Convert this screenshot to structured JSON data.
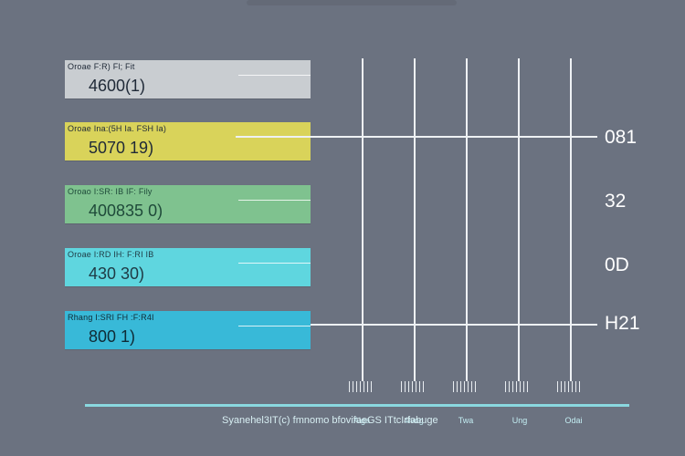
{
  "rows": [
    {
      "label": "Oroae F:R) Fl; Fit",
      "value": "4600(1)",
      "color": "#c9cdd1",
      "text_color": "#1f2937"
    },
    {
      "label": "Oroae Ina:(5H Ia. FSH Ia)",
      "value": "5070 19)",
      "color": "#d9d35a",
      "text_color": "#1f2937"
    },
    {
      "label": "Oroao I:SR: IB IF: Fily",
      "value": "400835 0)",
      "color": "#7fc28f",
      "text_color": "#1f4a3a"
    },
    {
      "label": "Oroae I:RD IH: F:RI IB",
      "value": "430 30)",
      "color": "#5fd6df",
      "text_color": "#1f3a44"
    },
    {
      "label": "Rhang I:SRI FH :F:R4I",
      "value": "800 1)",
      "color": "#38b9d8",
      "text_color": "#0f2b36"
    }
  ],
  "right_labels": [
    "081",
    "32",
    "0D",
    "H21"
  ],
  "bottom_labels": [
    "Aiga",
    "4lvog",
    "Twa",
    "Ung",
    "Odai"
  ],
  "caption": "Syanehel3IT(c) fmnomo bfovifaeGS ITtcIrfabuge",
  "colors": {
    "background": "#6b7280",
    "lines": "#eef1f4",
    "baseline": "#8ad8df"
  }
}
